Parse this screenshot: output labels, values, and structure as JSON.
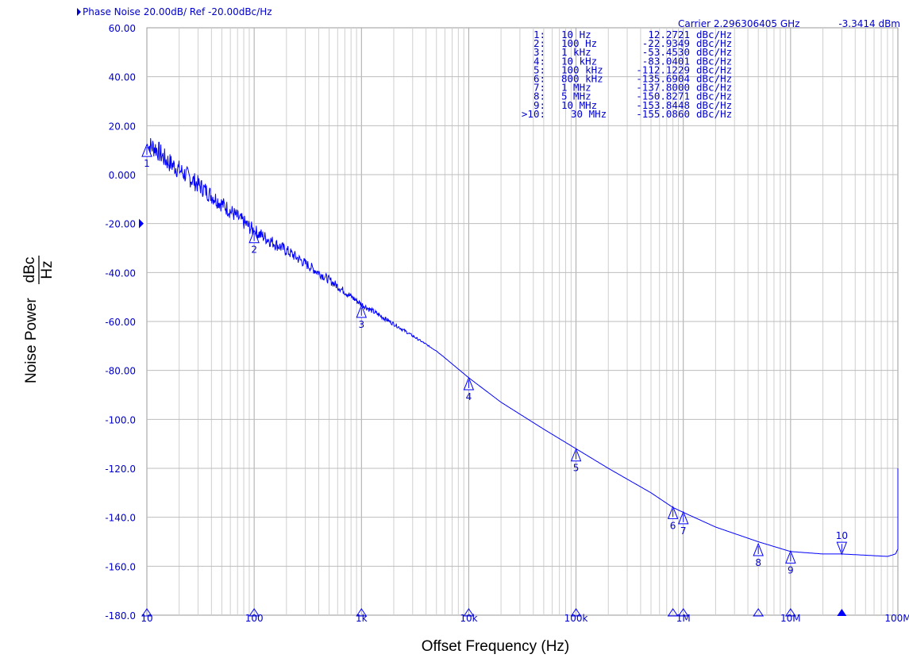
{
  "chart_data": {
    "type": "line",
    "header": "Phase Noise 20.00dB/ Ref -20.00dBc/Hz",
    "carrier_label": "Carrier 2.296306405 GHz",
    "carrier_power": "-3.3414 dBm",
    "xlabel": "Offset Frequency (Hz)",
    "ylabel_main": "Noise Power",
    "ylabel_unit_num": "dBc",
    "ylabel_unit_den": "Hz",
    "x_scale": "log",
    "xlim": [
      10,
      100000000
    ],
    "ylim": [
      -180,
      60
    ],
    "y_ref": -20,
    "x_ticks": [
      {
        "value": 10,
        "label": "10"
      },
      {
        "value": 100,
        "label": "100"
      },
      {
        "value": 1000,
        "label": "1k"
      },
      {
        "value": 10000,
        "label": "10k"
      },
      {
        "value": 100000,
        "label": "100k"
      },
      {
        "value": 1000000,
        "label": "1M"
      },
      {
        "value": 10000000,
        "label": "10M"
      },
      {
        "value": 100000000,
        "label": "100M"
      }
    ],
    "y_ticks": [
      {
        "value": 60,
        "label": "60.00"
      },
      {
        "value": 40,
        "label": "40.00"
      },
      {
        "value": 20,
        "label": "20.00"
      },
      {
        "value": 0,
        "label": "0.000"
      },
      {
        "value": -20,
        "label": "-20.00"
      },
      {
        "value": -40,
        "label": "-40.00"
      },
      {
        "value": -60,
        "label": "-60.00"
      },
      {
        "value": -80,
        "label": "-80.00"
      },
      {
        "value": -100,
        "label": "-100.0"
      },
      {
        "value": -120,
        "label": "-120.0"
      },
      {
        "value": -140,
        "label": "-140.0"
      },
      {
        "value": -160,
        "label": "-160.0"
      },
      {
        "value": -180,
        "label": "-180.0"
      }
    ],
    "grid": true,
    "series": [
      {
        "color": "#0000ff",
        "x": [
          10,
          12,
          15,
          20,
          30,
          50,
          100,
          200,
          500,
          1000,
          2000,
          5000,
          10000,
          20000,
          50000,
          100000,
          200000,
          500000,
          800000,
          1000000,
          2000000,
          5000000,
          10000000,
          20000000,
          30000000,
          50000000,
          80000000,
          95000000,
          100000000
        ],
        "y": [
          12,
          11,
          6,
          2,
          -4,
          -12,
          -23,
          -31,
          -43,
          -53,
          -61,
          -72,
          -83,
          -93,
          -104,
          -112,
          -120,
          -130,
          -136,
          -138,
          -144,
          -150,
          -154,
          -155,
          -155,
          -155.5,
          -156,
          -155,
          -153
        ]
      }
    ],
    "markers": [
      {
        "id": "1",
        "freq": 10,
        "value": 12.2721,
        "freq_label": "10 Hz",
        "value_label": "12.2721",
        "unit": "dBc/Hz",
        "num": "1:"
      },
      {
        "id": "2",
        "freq": 100,
        "value": -22.9349,
        "freq_label": "100 Hz",
        "value_label": "-22.9349",
        "unit": "dBc/Hz",
        "num": "2:"
      },
      {
        "id": "3",
        "freq": 1000,
        "value": -53.453,
        "freq_label": "1 kHz",
        "value_label": "-53.4530",
        "unit": "dBc/Hz",
        "num": "3:"
      },
      {
        "id": "4",
        "freq": 10000,
        "value": -83.0401,
        "freq_label": "10 kHz",
        "value_label": "-83.0401",
        "unit": "dBc/Hz",
        "num": "4:"
      },
      {
        "id": "5",
        "freq": 100000,
        "value": -112.1229,
        "freq_label": "100 kHz",
        "value_label": "-112.1229",
        "unit": "dBc/Hz",
        "num": "5:"
      },
      {
        "id": "6",
        "freq": 800000,
        "value": -135.6904,
        "freq_label": "800 kHz",
        "value_label": "-135.6904",
        "unit": "dBc/Hz",
        "num": "6:"
      },
      {
        "id": "7",
        "freq": 1000000,
        "value": -137.8,
        "freq_label": "1 MHz",
        "value_label": "-137.8000",
        "unit": "dBc/Hz",
        "num": "7:"
      },
      {
        "id": "8",
        "freq": 5000000,
        "value": -150.8271,
        "freq_label": "5 MHz",
        "value_label": "-150.8271",
        "unit": "dBc/Hz",
        "num": "8:"
      },
      {
        "id": "9",
        "freq": 10000000,
        "value": -153.8448,
        "freq_label": "10 MHz",
        "value_label": "-153.8448",
        "unit": "dBc/Hz",
        "num": "9:"
      },
      {
        "id": "10",
        "freq": 30000000,
        "value": -155.086,
        "freq_label": "30 MHz",
        "value_label": "-155.0860",
        "unit": "dBc/Hz",
        "num": ">10:",
        "active": true
      }
    ]
  }
}
